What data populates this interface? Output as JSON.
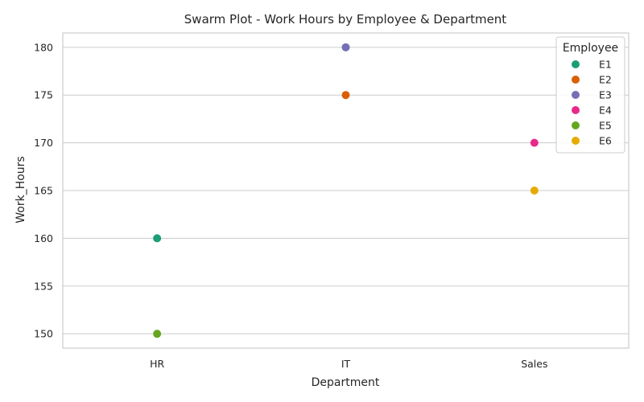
{
  "chart_data": {
    "type": "scatter",
    "title": "Swarm Plot - Work Hours by Employee & Department",
    "xlabel": "Department",
    "ylabel": "Work_Hours",
    "categories": [
      "HR",
      "IT",
      "Sales"
    ],
    "ylim": [
      148.5,
      181.5
    ],
    "yticks": [
      150,
      155,
      160,
      165,
      170,
      175,
      180
    ],
    "grid": "horizontal",
    "legend": {
      "title": "Employee",
      "placement": "top-right"
    },
    "series": [
      {
        "name": "E1",
        "color": "#1b9e77",
        "points": [
          {
            "x": "HR",
            "y": 160
          }
        ]
      },
      {
        "name": "E2",
        "color": "#d95f02",
        "points": [
          {
            "x": "IT",
            "y": 175
          }
        ]
      },
      {
        "name": "E3",
        "color": "#7570b3",
        "points": [
          {
            "x": "IT",
            "y": 180
          }
        ]
      },
      {
        "name": "E4",
        "color": "#e7298a",
        "points": [
          {
            "x": "Sales",
            "y": 170
          }
        ]
      },
      {
        "name": "E5",
        "color": "#66a61e",
        "points": [
          {
            "x": "HR",
            "y": 150
          }
        ]
      },
      {
        "name": "E6",
        "color": "#e6ab02",
        "points": [
          {
            "x": "Sales",
            "y": 165
          }
        ]
      }
    ]
  }
}
